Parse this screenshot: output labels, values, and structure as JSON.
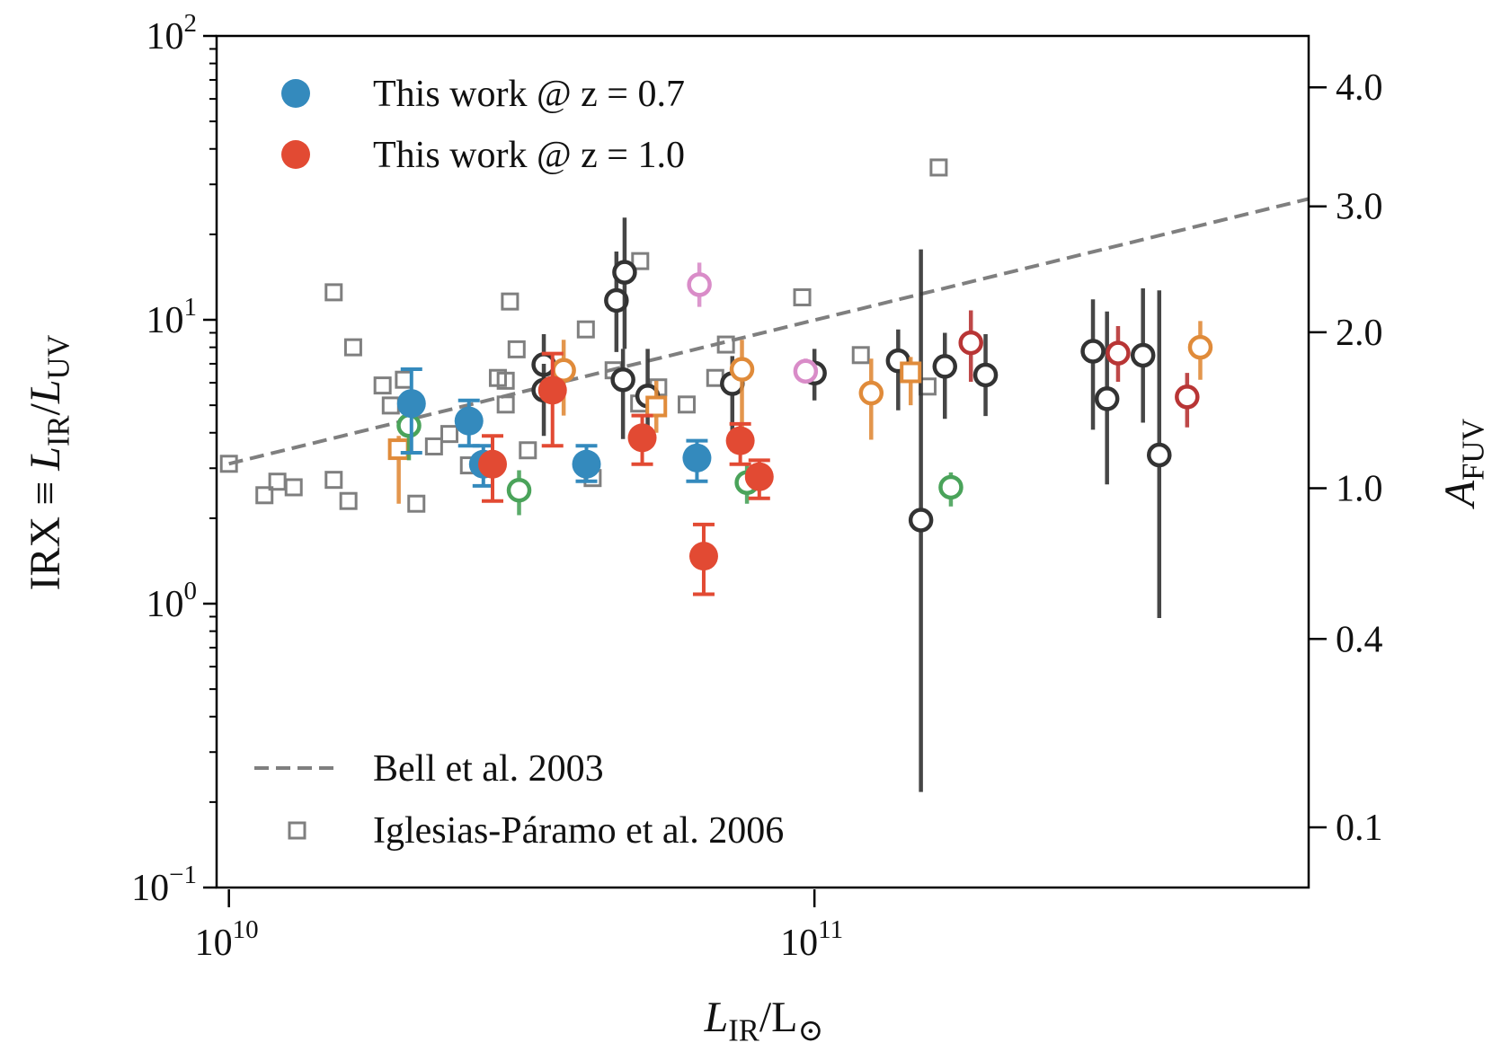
{
  "chart_data": {
    "type": "scatter",
    "xlabel": "L_{IR}/L_{⊙}",
    "ylabel": "IRX ≡ L_{IR}/L_{UV}",
    "y2label": "A_{FUV}",
    "xscale": "log",
    "yscale": "log",
    "xlim": [
      9500000000.0,
      700000000000.0
    ],
    "ylim": [
      0.1,
      100
    ],
    "grid": false,
    "legend_placement": [
      "upper-left",
      "lower-left"
    ],
    "x_ticks": [
      {
        "value": 10000000000.0,
        "base": "10",
        "exp": "10"
      },
      {
        "value": 100000000000.0,
        "base": "10",
        "exp": "11"
      }
    ],
    "y_ticks": [
      {
        "value": 0.1,
        "base": "10",
        "exp": "−1"
      },
      {
        "value": 1,
        "base": "10",
        "exp": "0"
      },
      {
        "value": 10,
        "base": "10",
        "exp": "1"
      },
      {
        "value": 100,
        "base": "10",
        "exp": "2"
      }
    ],
    "y2_ticks": [
      {
        "label": "4.0",
        "irx": 65.9
      },
      {
        "label": "3.0",
        "irx": 25.1
      },
      {
        "label": "2.0",
        "irx": 9.04
      },
      {
        "label": "1.0",
        "irx": 2.55
      },
      {
        "label": "0.4",
        "irx": 0.751
      },
      {
        "label": "0.1",
        "irx": 0.163
      }
    ],
    "bell_line": {
      "name": "Bell et al. 2003",
      "color": "#7f7f7f",
      "x": [
        10000000000.0,
        700000000000.0
      ],
      "y": [
        3.11,
        26.7
      ]
    },
    "iglesias": {
      "name": "Iglesias-Páramo et al. 2006",
      "color": "#7f7f7f",
      "x": [
        10000000000.0,
        11500000000.0,
        12100000000.0,
        12900000000.0,
        15100000000.0,
        15100000000.0,
        16000000000.0,
        16300000000.0,
        18300000000.0,
        18900000000.0,
        19900000000.0,
        20900000000.0,
        22400000000.0,
        23800000000.0,
        25700000000.0,
        28800000000.0,
        29700000000.0,
        30200000000.0,
        29700000000.0,
        31000000000.0,
        32400000000.0,
        40700000000.0,
        41800000000.0,
        45400000000.0,
        50400000000.0,
        50200000000.0,
        54100000000.0,
        60500000000.0,
        67700000000.0,
        70600000000.0,
        95300000000.0,
        120000000000.0,
        156000000000.0,
        163000000000.0
      ],
      "y": [
        3.11,
        2.41,
        2.69,
        2.57,
        12.5,
        2.73,
        2.3,
        8.0,
        5.87,
        4.99,
        6.15,
        2.25,
        3.58,
        3.96,
        3.07,
        6.24,
        6.1,
        11.6,
        5.03,
        7.87,
        3.47,
        9.25,
        2.77,
        6.64,
        16.1,
        5.07,
        5.78,
        5.03,
        6.24,
        8.18,
        12.0,
        7.51,
        5.82,
        34.4
      ]
    },
    "other_samples": [
      {
        "color": "#333333",
        "marker": "open-circle",
        "points": [
          {
            "x": 34500000000.0,
            "y": 6.95,
            "lo": 5.7,
            "hi": 8.9
          },
          {
            "x": 34500000000.0,
            "y": 5.65,
            "lo": 3.9,
            "hi": 7.0
          },
          {
            "x": 45900000000.0,
            "y": 11.7,
            "lo": 7.7,
            "hi": 17.4
          },
          {
            "x": 47400000000.0,
            "y": 14.7,
            "lo": 7.9,
            "hi": 22.9
          },
          {
            "x": 47100000000.0,
            "y": 6.15,
            "lo": 3.8,
            "hi": 7.9
          },
          {
            "x": 51900000000.0,
            "y": 5.39,
            "lo": 3.8,
            "hi": 7.9
          },
          {
            "x": 72400000000.0,
            "y": 5.96,
            "lo": 3.44,
            "hi": 7.45
          },
          {
            "x": 100000000000.0,
            "y": 6.49,
            "lo": 5.2,
            "hi": 7.9
          },
          {
            "x": 139000000000.0,
            "y": 7.17,
            "lo": 4.8,
            "hi": 9.25
          },
          {
            "x": 152000000000.0,
            "y": 1.97,
            "lo": 0.217,
            "hi": 17.7
          },
          {
            "x": 167000000000.0,
            "y": 6.85,
            "lo": 4.48,
            "hi": 9.0
          },
          {
            "x": 196000000000.0,
            "y": 6.39,
            "lo": 4.58,
            "hi": 8.9
          },
          {
            "x": 299000000000.0,
            "y": 7.75,
            "lo": 4.1,
            "hi": 11.8
          },
          {
            "x": 316000000000.0,
            "y": 5.27,
            "lo": 2.63,
            "hi": 10.7
          },
          {
            "x": 364000000000.0,
            "y": 7.5,
            "lo": 4.34,
            "hi": 12.9
          },
          {
            "x": 388000000000.0,
            "y": 3.34,
            "lo": 0.89,
            "hi": 12.7
          }
        ]
      },
      {
        "color": "#e08b3a",
        "marker": "open-circle",
        "points": [
          {
            "x": 37300000000.0,
            "y": 6.64,
            "lo": 4.6,
            "hi": 8.5
          },
          {
            "x": 75200000000.0,
            "y": 6.69,
            "lo": 3.8,
            "hi": 8.5
          },
          {
            "x": 125000000000.0,
            "y": 5.52,
            "lo": 3.78,
            "hi": 7.3
          },
          {
            "x": 456000000000.0,
            "y": 8.0,
            "lo": 6.15,
            "hi": 9.9
          }
        ]
      },
      {
        "color": "#e08b3a",
        "marker": "open-square",
        "points": [
          {
            "x": 19500000000.0,
            "y": 3.5,
            "lo": 2.25,
            "hi": 3.9
          },
          {
            "x": 53700000000.0,
            "y": 4.95,
            "lo": 4.0,
            "hi": 6.1
          },
          {
            "x": 146000000000.0,
            "y": 6.53,
            "lo": 5.0,
            "hi": 7.4
          }
        ]
      },
      {
        "color": "#4aa35a",
        "marker": "open-circle",
        "points": [
          {
            "x": 20300000000.0,
            "y": 4.24,
            "lo": 3.2,
            "hi": 5.2
          },
          {
            "x": 31300000000.0,
            "y": 2.51,
            "lo": 2.05,
            "hi": 2.95
          },
          {
            "x": 76700000000.0,
            "y": 2.67,
            "lo": 2.25,
            "hi": 3.1
          },
          {
            "x": 171000000000.0,
            "y": 2.57,
            "lo": 2.2,
            "hi": 2.9
          }
        ]
      },
      {
        "color": "#d98cc8",
        "marker": "open-circle",
        "points": [
          {
            "x": 63600000000.0,
            "y": 13.3,
            "lo": 11.1,
            "hi": 15.9
          },
          {
            "x": 96600000000.0,
            "y": 6.59,
            "lo": 6.0,
            "hi": 7.3
          }
        ]
      },
      {
        "color": "#b83535",
        "marker": "open-circle",
        "points": [
          {
            "x": 185000000000.0,
            "y": 8.3,
            "lo": 6.05,
            "hi": 10.8
          },
          {
            "x": 330000000000.0,
            "y": 7.63,
            "lo": 6.05,
            "hi": 9.5
          },
          {
            "x": 433000000000.0,
            "y": 5.35,
            "lo": 4.18,
            "hi": 6.5
          }
        ]
      }
    ],
    "series": [
      {
        "name": "This work @ z = 0.7",
        "color": "#348abd",
        "points": [
          {
            "x": 20500000000.0,
            "y": 5.07,
            "lo": 3.4,
            "hi": 6.7
          },
          {
            "x": 25700000000.0,
            "y": 4.4,
            "lo": 3.6,
            "hi": 5.2
          },
          {
            "x": 27200000000.0,
            "y": 3.1,
            "lo": 2.6,
            "hi": 3.6
          },
          {
            "x": 40800000000.0,
            "y": 3.1,
            "lo": 2.7,
            "hi": 3.6
          },
          {
            "x": 63000000000.0,
            "y": 3.26,
            "lo": 2.7,
            "hi": 3.75
          }
        ]
      },
      {
        "name": "This work @ z = 1.0",
        "color": "#e24a33",
        "points": [
          {
            "x": 28200000000.0,
            "y": 3.1,
            "lo": 2.3,
            "hi": 3.9
          },
          {
            "x": 35700000000.0,
            "y": 5.65,
            "lo": 3.6,
            "hi": 7.6
          },
          {
            "x": 50800000000.0,
            "y": 3.84,
            "lo": 3.1,
            "hi": 4.6
          },
          {
            "x": 64700000000.0,
            "y": 1.47,
            "lo": 1.08,
            "hi": 1.9
          },
          {
            "x": 74700000000.0,
            "y": 3.75,
            "lo": 3.1,
            "hi": 4.3
          },
          {
            "x": 80500000000.0,
            "y": 2.8,
            "lo": 2.35,
            "hi": 3.2
          }
        ]
      }
    ]
  }
}
